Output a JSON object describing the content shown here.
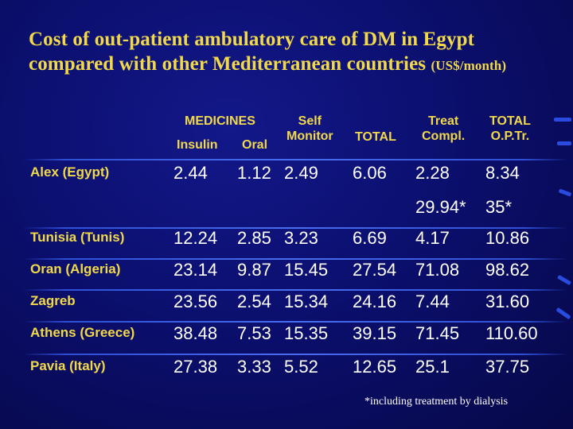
{
  "title": {
    "line1": "Cost of out-patient ambulatory care of DM in Egypt",
    "line2": "compared with other Mediterranean countries",
    "unit": "(US$/month)"
  },
  "headers": {
    "medicines": "MEDICINES",
    "insulin": "Insulin",
    "oral": "Oral",
    "self_line1": "Self",
    "self_line2": "Monitor",
    "total": "TOTAL",
    "treat_line1": "Treat",
    "treat_line2": "Compl.",
    "total_op_line1": "TOTAL",
    "total_op_line2": "O.P.Tr."
  },
  "rows": [
    {
      "label": "Alex (Egypt)",
      "insulin": "2.44",
      "oral": "1.12",
      "self_monitor": "2.49",
      "total": "6.06",
      "treat_compl": "2.28",
      "total_op": "8.34"
    },
    {
      "label": "",
      "insulin": "",
      "oral": "",
      "self_monitor": "",
      "total": "",
      "treat_compl": "29.94*",
      "total_op": "35*"
    },
    {
      "label": "Tunisia (Tunis)",
      "insulin": "12.24",
      "oral": "2.85",
      "self_monitor": "3.23",
      "total": "6.69",
      "treat_compl": "4.17",
      "total_op": "10.86"
    },
    {
      "label": "Oran (Algeria)",
      "insulin": "23.14",
      "oral": "9.87",
      "self_monitor": "15.45",
      "total": "27.54",
      "treat_compl": "71.08",
      "total_op": "98.62"
    },
    {
      "label": "Zagreb",
      "insulin": "23.56",
      "oral": "2.54",
      "self_monitor": "15.34",
      "total": "24.16",
      "treat_compl": "7.44",
      "total_op": "31.60"
    },
    {
      "label": "Athens (Greece)",
      "insulin": "38.48",
      "oral": "7.53",
      "self_monitor": "15.35",
      "total": "39.15",
      "treat_compl": "71.45",
      "total_op": "110.60"
    },
    {
      "label": "Pavia (Italy)",
      "insulin": "27.38",
      "oral": "3.33",
      "self_monitor": "5.52",
      "total": "12.65",
      "treat_compl": "25.1",
      "total_op": "37.75"
    }
  ],
  "footnote": "*including treatment by dialysis"
}
